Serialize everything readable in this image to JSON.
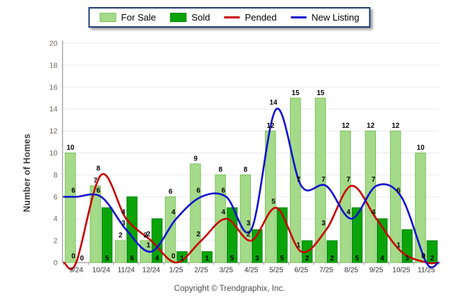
{
  "chart_data": {
    "type": "combo",
    "title": "",
    "xlabel": "",
    "ylabel": "Number of Homes",
    "ylim": [
      0,
      20
    ],
    "ytick_step": 2,
    "grid": true,
    "legend_position": "top",
    "categories": [
      "9/24",
      "10/24",
      "11/24",
      "12/24",
      "1/25",
      "2/25",
      "3/25",
      "4/25",
      "5/25",
      "6/25",
      "7/25",
      "8/25",
      "9/25",
      "10/25",
      "11/25"
    ],
    "series": [
      {
        "name": "For Sale",
        "type": "bar",
        "color": "#a4da89",
        "border": "#7cc05a",
        "values": [
          10,
          7,
          2,
          2,
          6,
          9,
          8,
          8,
          12,
          15,
          15,
          12,
          12,
          12,
          10
        ]
      },
      {
        "name": "Sold",
        "type": "bar",
        "color": "#0aa30a",
        "border": "#068506",
        "values": [
          0,
          5,
          6,
          4,
          1,
          1,
          5,
          3,
          5,
          2,
          2,
          5,
          4,
          3,
          2
        ]
      },
      {
        "name": "Pended",
        "type": "line",
        "color": "#c80000",
        "values": [
          0,
          8,
          4,
          2,
          0,
          2,
          4,
          2,
          5,
          1,
          3,
          7,
          4,
          1,
          0
        ]
      },
      {
        "name": "New Listing",
        "type": "line",
        "color": "#1111d1",
        "values": [
          6,
          6,
          3,
          1,
          4,
          6,
          6,
          3,
          14,
          7,
          7,
          4,
          7,
          6,
          0
        ]
      }
    ]
  },
  "footer": {
    "copyright": "Copyright © Trendgraphix, Inc."
  }
}
